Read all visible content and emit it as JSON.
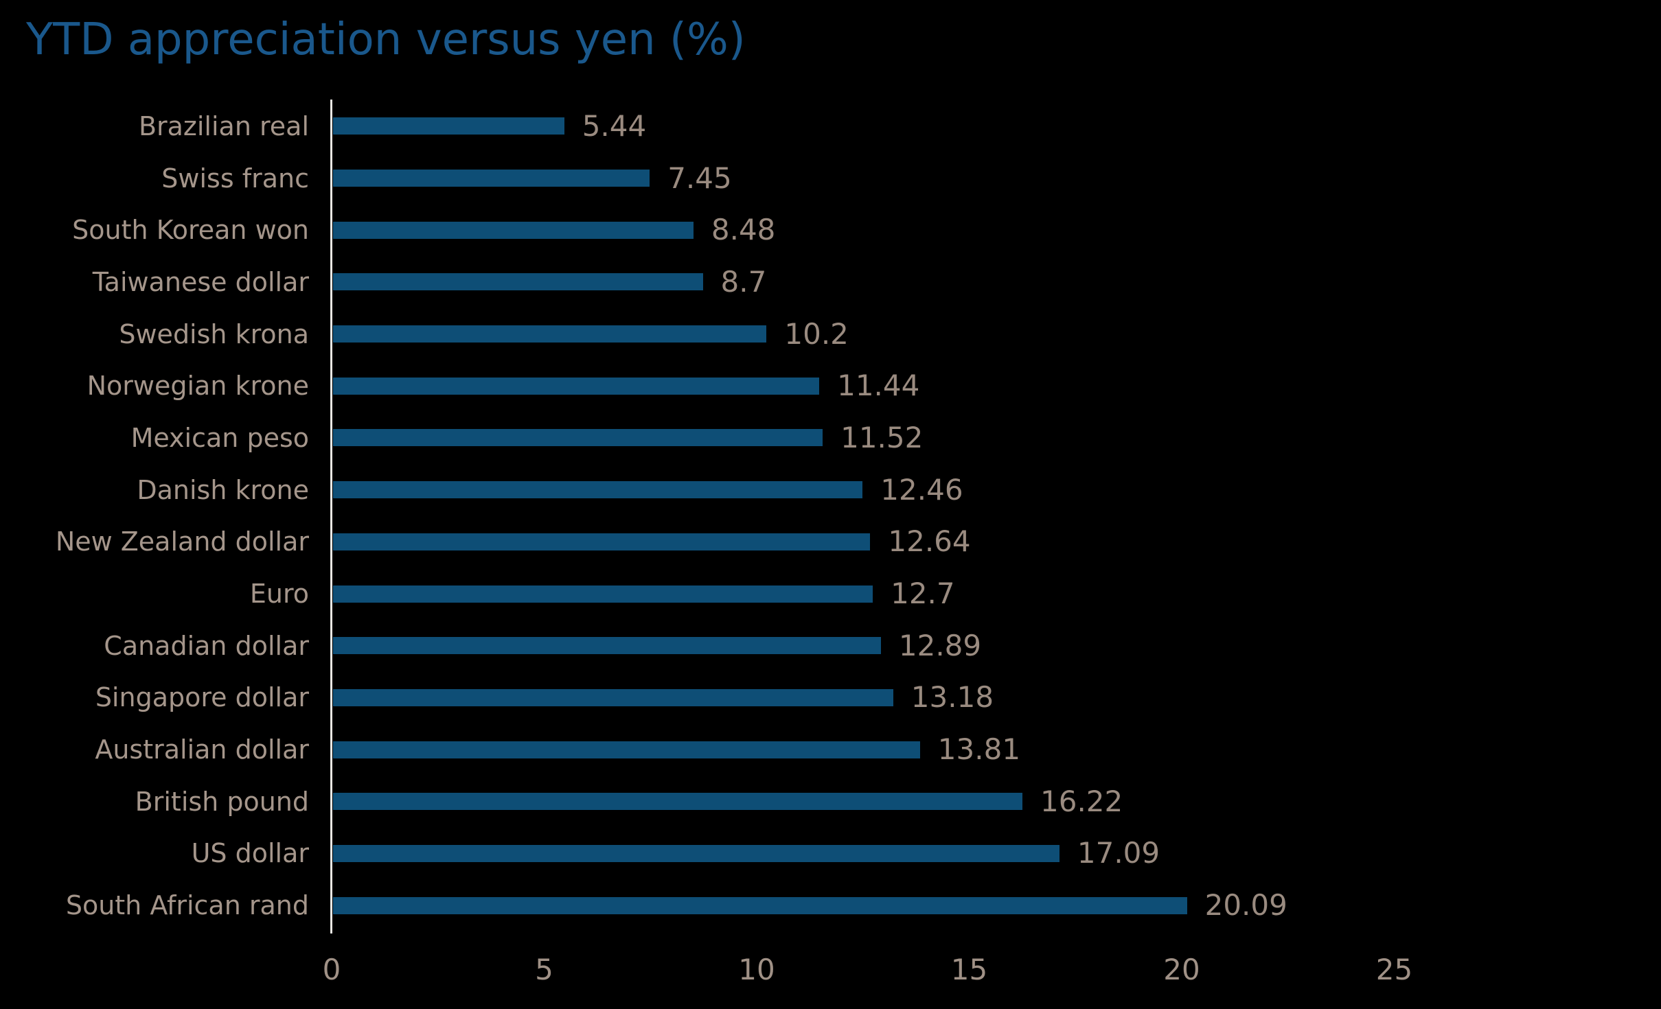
{
  "chart_data": {
    "type": "bar",
    "orientation": "horizontal",
    "title": "YTD appreciation versus yen (%)",
    "categories": [
      "Brazilian real",
      "Swiss franc",
      "South Korean won",
      "Taiwanese dollar",
      "Swedish krona",
      "Norwegian krone",
      "Mexican peso",
      "Danish krone",
      "New Zealand dollar",
      "Euro",
      "Canadian dollar",
      "Singapore dollar",
      "Australian dollar",
      "British pound",
      "US dollar",
      "South African rand"
    ],
    "values": [
      5.44,
      7.45,
      8.48,
      8.7,
      10.2,
      11.44,
      11.52,
      12.46,
      12.64,
      12.7,
      12.89,
      13.18,
      13.81,
      16.22,
      17.09,
      20.09
    ],
    "data_labels": [
      "5.44",
      "7.45",
      "8.48",
      "8.7",
      "10.2",
      "11.44",
      "11.52",
      "12.46",
      "12.64",
      "12.7",
      "12.89",
      "13.18",
      "13.81",
      "16.22",
      "17.09",
      "20.09"
    ],
    "xlabel": "",
    "ylabel": "",
    "xlim": [
      0,
      25
    ],
    "x_ticks": [
      "0",
      "5",
      "10",
      "15",
      "20",
      "25"
    ],
    "grid": false,
    "legend": false,
    "colors": {
      "background": "#000000",
      "bar": "#0E4E76",
      "title": "#1A588C",
      "category_label": "#A5968B",
      "value_label": "#9A8B80",
      "tick_label": "#A09186",
      "axis_line": "#E9E7E3"
    }
  }
}
